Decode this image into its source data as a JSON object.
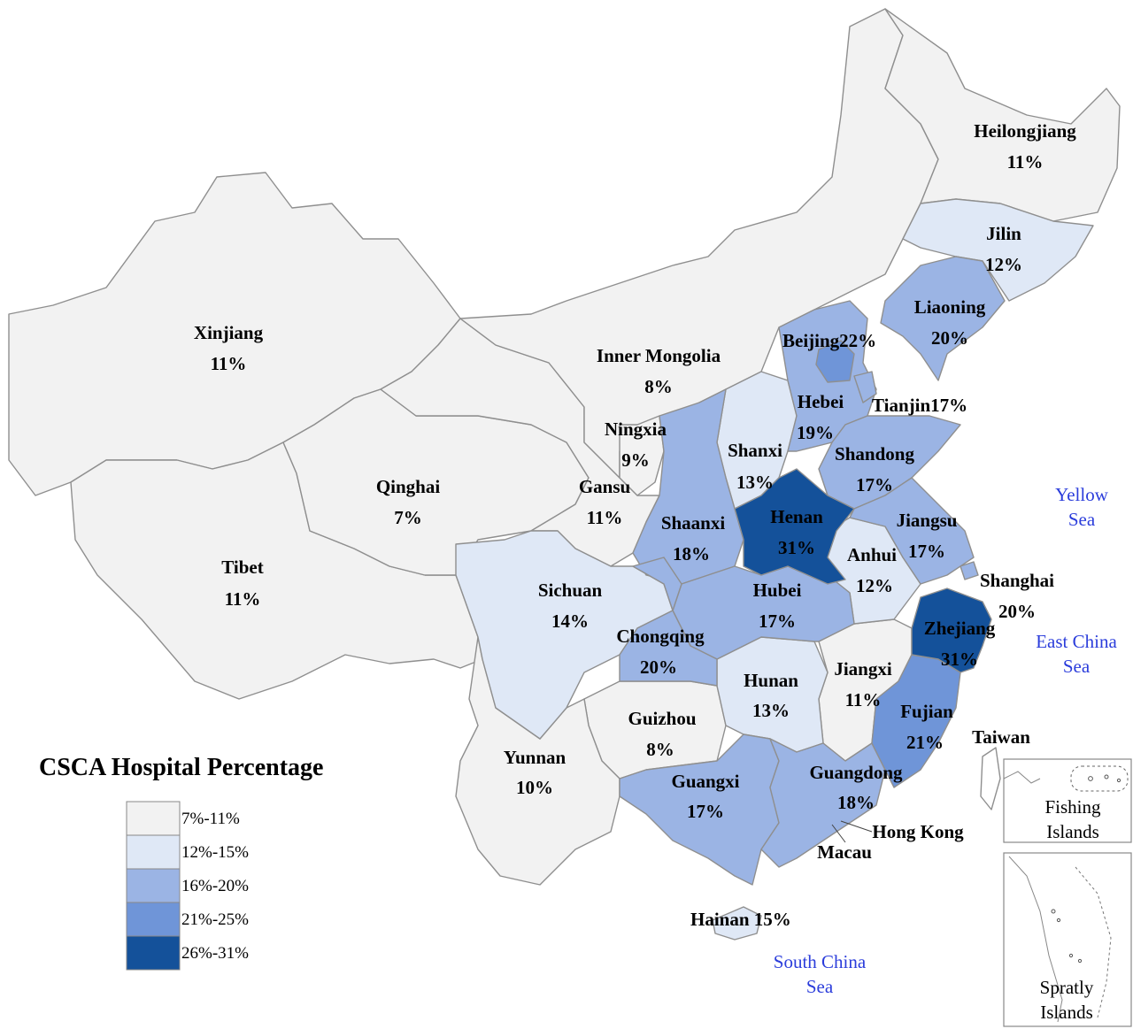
{
  "legend": {
    "title": "CSCA Hospital Percentage",
    "bins": [
      {
        "label": "7%-11%",
        "color": "#f2f2f2"
      },
      {
        "label": "12%-15%",
        "color": "#dfe8f6"
      },
      {
        "label": "16%-20%",
        "color": "#9bb4e4"
      },
      {
        "label": "21%-25%",
        "color": "#6f95d8"
      },
      {
        "label": "26%-31%",
        "color": "#14519a"
      }
    ]
  },
  "seas": {
    "yellow_line1": "Yellow",
    "yellow_line2": "Sea",
    "east_line1": "East China",
    "east_line2": "Sea",
    "south_line1": "South China",
    "south_line2": "Sea"
  },
  "insets": {
    "fishing_line1": "Fishing",
    "fishing_line2": "Islands",
    "spratly_line1": "Spratly",
    "spratly_line2": "Islands"
  },
  "regions": {
    "xinjiang": {
      "name": "Xinjiang",
      "value": "11%"
    },
    "tibet": {
      "name": "Tibet",
      "value": "11%"
    },
    "qinghai": {
      "name": "Qinghai",
      "value": "7%"
    },
    "inner_mongolia": {
      "name": "Inner Mongolia",
      "value": "8%"
    },
    "gansu": {
      "name": "Gansu",
      "value": "11%"
    },
    "ningxia": {
      "name": "Ningxia",
      "value": "9%"
    },
    "heilongjiang": {
      "name": "Heilongjiang",
      "value": "11%"
    },
    "jilin": {
      "name": "Jilin",
      "value": "12%"
    },
    "liaoning": {
      "name": "Liaoning",
      "value": "20%"
    },
    "beijing": {
      "name": "Beijing",
      "value": "22%"
    },
    "tianjin": {
      "name": "Tianjin",
      "value": "17%"
    },
    "hebei": {
      "name": "Hebei",
      "value": "19%"
    },
    "shanxi": {
      "name": "Shanxi",
      "value": "13%"
    },
    "shandong": {
      "name": "Shandong",
      "value": "17%"
    },
    "henan": {
      "name": "Henan",
      "value": "31%"
    },
    "shaanxi": {
      "name": "Shaanxi",
      "value": "18%"
    },
    "jiangsu": {
      "name": "Jiangsu",
      "value": "17%"
    },
    "anhui": {
      "name": "Anhui",
      "value": "12%"
    },
    "shanghai": {
      "name": "Shanghai",
      "value": "20%"
    },
    "sichuan": {
      "name": "Sichuan",
      "value": "14%"
    },
    "hubei": {
      "name": "Hubei",
      "value": "17%"
    },
    "chongqing": {
      "name": "Chongqing",
      "value": "20%"
    },
    "zhejiang": {
      "name": "Zhejiang",
      "value": "31%"
    },
    "hunan": {
      "name": "Hunan",
      "value": "13%"
    },
    "jiangxi": {
      "name": "Jiangxi",
      "value": "11%"
    },
    "guizhou": {
      "name": "Guizhou",
      "value": "8%"
    },
    "fujian": {
      "name": "Fujian",
      "value": "21%"
    },
    "yunnan": {
      "name": "Yunnan",
      "value": "10%"
    },
    "guangxi": {
      "name": "Guangxi",
      "value": "17%"
    },
    "guangdong": {
      "name": "Guangdong",
      "value": "18%"
    },
    "taiwan": {
      "name": "Taiwan"
    },
    "hong_kong": {
      "name": "Hong Kong"
    },
    "macau": {
      "name": "Macau"
    },
    "hainan": {
      "name": "Hainan",
      "value": "15%"
    }
  }
}
